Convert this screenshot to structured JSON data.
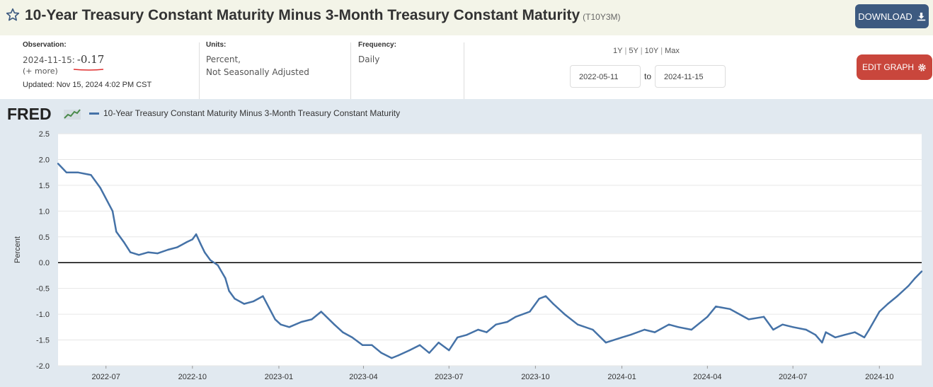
{
  "header": {
    "title": "10-Year Treasury Constant Maturity Minus 3-Month Treasury Constant Maturity",
    "series_code": "(T10Y3M)",
    "download_label": "DOWNLOAD",
    "icons": {
      "star": "star-icon",
      "download": "download-icon"
    }
  },
  "observation": {
    "label": "Observation:",
    "date": "2024-11-15:",
    "value": "-0.17",
    "more": "(+ more)",
    "updated": "Updated: Nov 15, 2024 4:02 PM CST"
  },
  "units": {
    "label": "Units:",
    "line1": "Percent,",
    "line2": "Not Seasonally Adjusted"
  },
  "frequency": {
    "label": "Frequency:",
    "value": "Daily"
  },
  "ranges": [
    "1Y",
    "5Y",
    "10Y",
    "Max"
  ],
  "date_range": {
    "start": "2022-05-11",
    "to": "to",
    "end": "2024-11-15"
  },
  "edit_graph_label": "EDIT GRAPH",
  "colors": {
    "series": "#4572a7",
    "edit": "#c9463c",
    "download": "#3d5a80",
    "chart_bg": "#e1e9f0"
  },
  "chart_data": {
    "type": "line",
    "title": "",
    "legend": [
      "10-Year Treasury Constant Maturity Minus 3-Month Treasury Constant Maturity"
    ],
    "ylabel": "Percent",
    "xlabel": "",
    "ylim": [
      -2.0,
      2.5
    ],
    "yticks": [
      "2.5",
      "2.0",
      "1.5",
      "1.0",
      "0.5",
      "0.0",
      "-0.5",
      "-1.0",
      "-1.5",
      "-2.0"
    ],
    "xticks": [
      "2022-07",
      "2022-10",
      "2023-01",
      "2023-04",
      "2023-07",
      "2023-10",
      "2024-01",
      "2024-04",
      "2024-07",
      "2024-10"
    ],
    "xlim": [
      "2022-05-11",
      "2024-11-15"
    ],
    "reference_line": 0,
    "series": [
      {
        "name": "10-Year Treasury Constant Maturity Minus 3-Month Treasury Constant Maturity",
        "x": [
          "2022-05-11",
          "2022-05-20",
          "2022-06-01",
          "2022-06-15",
          "2022-06-25",
          "2022-07-08",
          "2022-07-12",
          "2022-07-20",
          "2022-07-27",
          "2022-08-05",
          "2022-08-15",
          "2022-08-25",
          "2022-09-05",
          "2022-09-15",
          "2022-09-25",
          "2022-10-01",
          "2022-10-05",
          "2022-10-10",
          "2022-10-14",
          "2022-10-20",
          "2022-10-28",
          "2022-11-05",
          "2022-11-09",
          "2022-11-15",
          "2022-11-25",
          "2022-12-05",
          "2022-12-15",
          "2022-12-28",
          "2023-01-03",
          "2023-01-12",
          "2023-01-25",
          "2023-02-05",
          "2023-02-15",
          "2023-03-01",
          "2023-03-10",
          "2023-03-20",
          "2023-03-31",
          "2023-04-10",
          "2023-04-20",
          "2023-05-01",
          "2023-05-08",
          "2023-05-20",
          "2023-05-31",
          "2023-06-10",
          "2023-06-20",
          "2023-07-01",
          "2023-07-10",
          "2023-07-20",
          "2023-08-01",
          "2023-08-10",
          "2023-08-20",
          "2023-09-01",
          "2023-09-10",
          "2023-09-25",
          "2023-10-05",
          "2023-10-12",
          "2023-10-20",
          "2023-11-01",
          "2023-11-15",
          "2023-12-01",
          "2023-12-15",
          "2024-01-01",
          "2024-01-10",
          "2024-01-25",
          "2024-02-05",
          "2024-02-20",
          "2024-03-01",
          "2024-03-15",
          "2024-04-01",
          "2024-04-10",
          "2024-04-25",
          "2024-05-05",
          "2024-05-15",
          "2024-05-31",
          "2024-06-10",
          "2024-06-20",
          "2024-07-01",
          "2024-07-15",
          "2024-07-25",
          "2024-08-01",
          "2024-08-05",
          "2024-08-15",
          "2024-08-25",
          "2024-09-05",
          "2024-09-15",
          "2024-09-20",
          "2024-10-01",
          "2024-10-10",
          "2024-10-20",
          "2024-11-01",
          "2024-11-08",
          "2024-11-15"
        ],
        "values": [
          1.92,
          1.75,
          1.75,
          1.7,
          1.45,
          1.0,
          0.6,
          0.4,
          0.2,
          0.15,
          0.2,
          0.18,
          0.25,
          0.3,
          0.4,
          0.45,
          0.55,
          0.35,
          0.2,
          0.05,
          -0.05,
          -0.3,
          -0.55,
          -0.7,
          -0.8,
          -0.75,
          -0.65,
          -1.1,
          -1.2,
          -1.25,
          -1.15,
          -1.1,
          -0.95,
          -1.2,
          -1.35,
          -1.45,
          -1.6,
          -1.6,
          -1.75,
          -1.85,
          -1.8,
          -1.7,
          -1.6,
          -1.75,
          -1.55,
          -1.7,
          -1.45,
          -1.4,
          -1.3,
          -1.35,
          -1.2,
          -1.15,
          -1.05,
          -0.95,
          -0.7,
          -0.65,
          -0.8,
          -1.0,
          -1.2,
          -1.3,
          -1.55,
          -1.45,
          -1.4,
          -1.3,
          -1.35,
          -1.2,
          -1.25,
          -1.3,
          -1.05,
          -0.85,
          -0.9,
          -1.0,
          -1.1,
          -1.05,
          -1.3,
          -1.2,
          -1.25,
          -1.3,
          -1.4,
          -1.55,
          -1.35,
          -1.45,
          -1.4,
          -1.35,
          -1.45,
          -1.3,
          -0.95,
          -0.8,
          -0.65,
          -0.45,
          -0.3,
          -0.17
        ]
      }
    ]
  }
}
